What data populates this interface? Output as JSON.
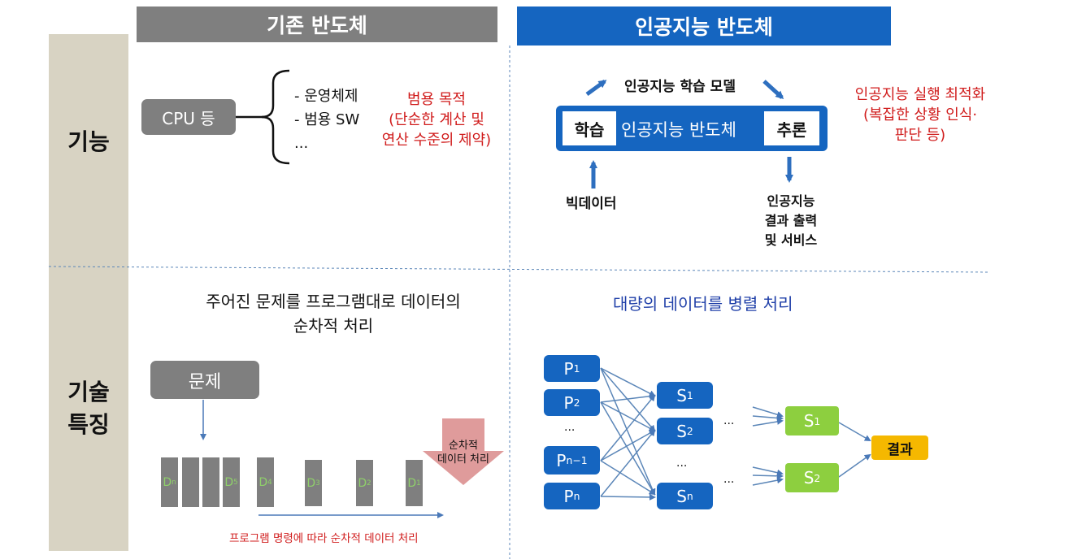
{
  "header": {
    "existing": "기존 반도체",
    "ai": "인공지능 반도체"
  },
  "rows": {
    "function": "기능",
    "tech_line1": "기술",
    "tech_line2": "특징"
  },
  "existing_function": {
    "cpu": "CPU 등",
    "items": [
      "- 운영체제",
      "- 범용 SW",
      "..."
    ],
    "purpose_lines": [
      "범용 목적",
      "(단순한 계산 및",
      "연산 수준의 제약)"
    ]
  },
  "ai_function": {
    "model": "인공지능 학습 모델",
    "learn": "학습",
    "chip": "인공지능 반도체",
    "infer": "추론",
    "bigdata": "빅데이터",
    "output_lines": [
      "인공지능",
      "결과 출력",
      "및 서비스"
    ],
    "optimize_lines": [
      "인공지능 실행 최적화",
      "(복잡한 상황 인식·",
      "판단 등)"
    ]
  },
  "existing_tech": {
    "desc_lines": [
      "주어진 문제를 프로그램대로 데이터의",
      "순차적 처리"
    ],
    "problem": "문제",
    "bars": [
      {
        "base": "D",
        "sub": "n"
      },
      {
        "base": "",
        "sub": ""
      },
      {
        "base": "",
        "sub": ""
      },
      {
        "base": "D",
        "sub": "5"
      },
      {
        "base": "D",
        "sub": "4"
      },
      {
        "base": "D",
        "sub": "3"
      },
      {
        "base": "D",
        "sub": "2"
      },
      {
        "base": "D",
        "sub": "1"
      }
    ],
    "seq_lines": [
      "순차적",
      "데이터 처리"
    ],
    "caption": "프로그램 명령에 따라 순차적 데이터 처리"
  },
  "ai_tech": {
    "desc": "대량의 데이터를 병렬 처리",
    "p_nodes": [
      {
        "base": "P",
        "sub": "1"
      },
      {
        "base": "P",
        "sub": "2"
      },
      {
        "base": "P",
        "sub": "n−1"
      },
      {
        "base": "P",
        "sub": "n"
      }
    ],
    "s_nodes": [
      {
        "base": "S",
        "sub": "1"
      },
      {
        "base": "S",
        "sub": "2"
      },
      {
        "base": "S",
        "sub": "n"
      }
    ],
    "g_nodes": [
      {
        "base": "S",
        "sub": "1"
      },
      {
        "base": "S",
        "sub": "2"
      }
    ],
    "ellipsis": "...",
    "result": "결과"
  },
  "colors": {
    "gray": "#7f7f7f",
    "blue": "#1565c0",
    "sidebar": "#d8d3c3",
    "red": "#d01b1b",
    "green": "#8dcf3f",
    "result": "#f5b800"
  }
}
